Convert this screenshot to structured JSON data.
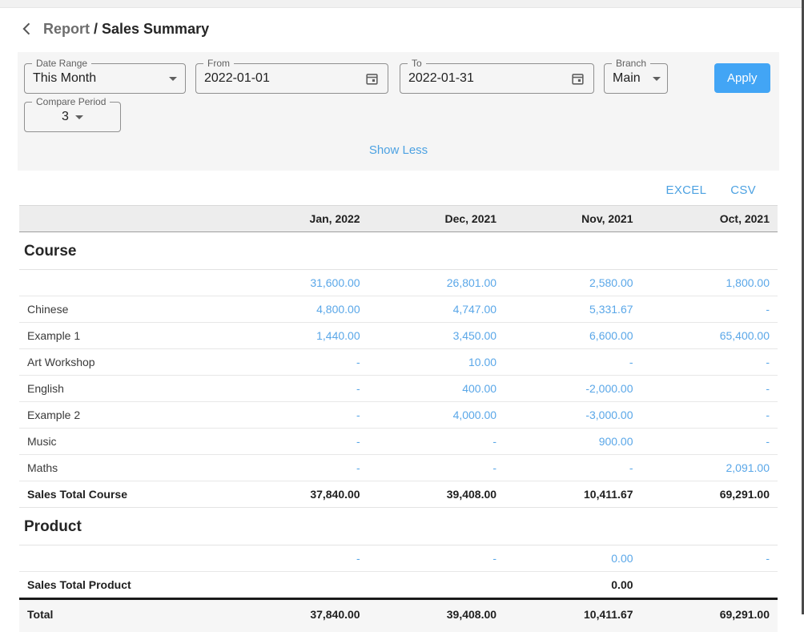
{
  "breadcrumb": {
    "section": "Report",
    "separator": "/",
    "page": "Sales Summary"
  },
  "filters": {
    "date_range": {
      "label": "Date Range",
      "value": "This Month"
    },
    "from": {
      "label": "From",
      "value": "2022-01-01"
    },
    "to": {
      "label": "To",
      "value": "2022-01-31"
    },
    "branch": {
      "label": "Branch",
      "value": "Main"
    },
    "compare_period": {
      "label": "Compare Period",
      "value": "3"
    },
    "apply_label": "Apply",
    "show_less_label": "Show Less"
  },
  "export": {
    "excel_label": "EXCEL",
    "csv_label": "CSV"
  },
  "table": {
    "columns": [
      "Jan, 2022",
      "Dec, 2021",
      "Nov, 2021",
      "Oct, 2021"
    ],
    "sections": [
      {
        "title": "Course",
        "rows": [
          {
            "label": "",
            "values": [
              "31,600.00",
              "26,801.00",
              "2,580.00",
              "1,800.00"
            ]
          },
          {
            "label": "Chinese",
            "values": [
              "4,800.00",
              "4,747.00",
              "5,331.67",
              "-"
            ]
          },
          {
            "label": "Example 1",
            "values": [
              "1,440.00",
              "3,450.00",
              "6,600.00",
              "65,400.00"
            ]
          },
          {
            "label": "Art Workshop",
            "values": [
              "-",
              "10.00",
              "-",
              "-"
            ]
          },
          {
            "label": "English",
            "values": [
              "-",
              "400.00",
              "-2,000.00",
              "-"
            ]
          },
          {
            "label": "Example 2",
            "values": [
              "-",
              "4,000.00",
              "-3,000.00",
              "-"
            ]
          },
          {
            "label": "Music",
            "values": [
              "-",
              "-",
              "900.00",
              "-"
            ]
          },
          {
            "label": "Maths",
            "values": [
              "-",
              "-",
              "-",
              "2,091.00"
            ]
          }
        ],
        "total": {
          "label": "Sales Total Course",
          "values": [
            "37,840.00",
            "39,408.00",
            "10,411.67",
            "69,291.00"
          ]
        }
      },
      {
        "title": "Product",
        "rows": [
          {
            "label": "",
            "values": [
              "-",
              "-",
              "0.00",
              "-"
            ]
          }
        ],
        "total": {
          "label": "Sales Total Product",
          "values": [
            "",
            "",
            "0.00",
            ""
          ]
        }
      }
    ],
    "grand_total": {
      "label": "Total",
      "values": [
        "37,840.00",
        "39,408.00",
        "10,411.67",
        "69,291.00"
      ]
    }
  },
  "colors": {
    "accent_blue": "#42a5f5",
    "value_blue": "#5aa7e8",
    "link_blue": "#4da2e2"
  }
}
